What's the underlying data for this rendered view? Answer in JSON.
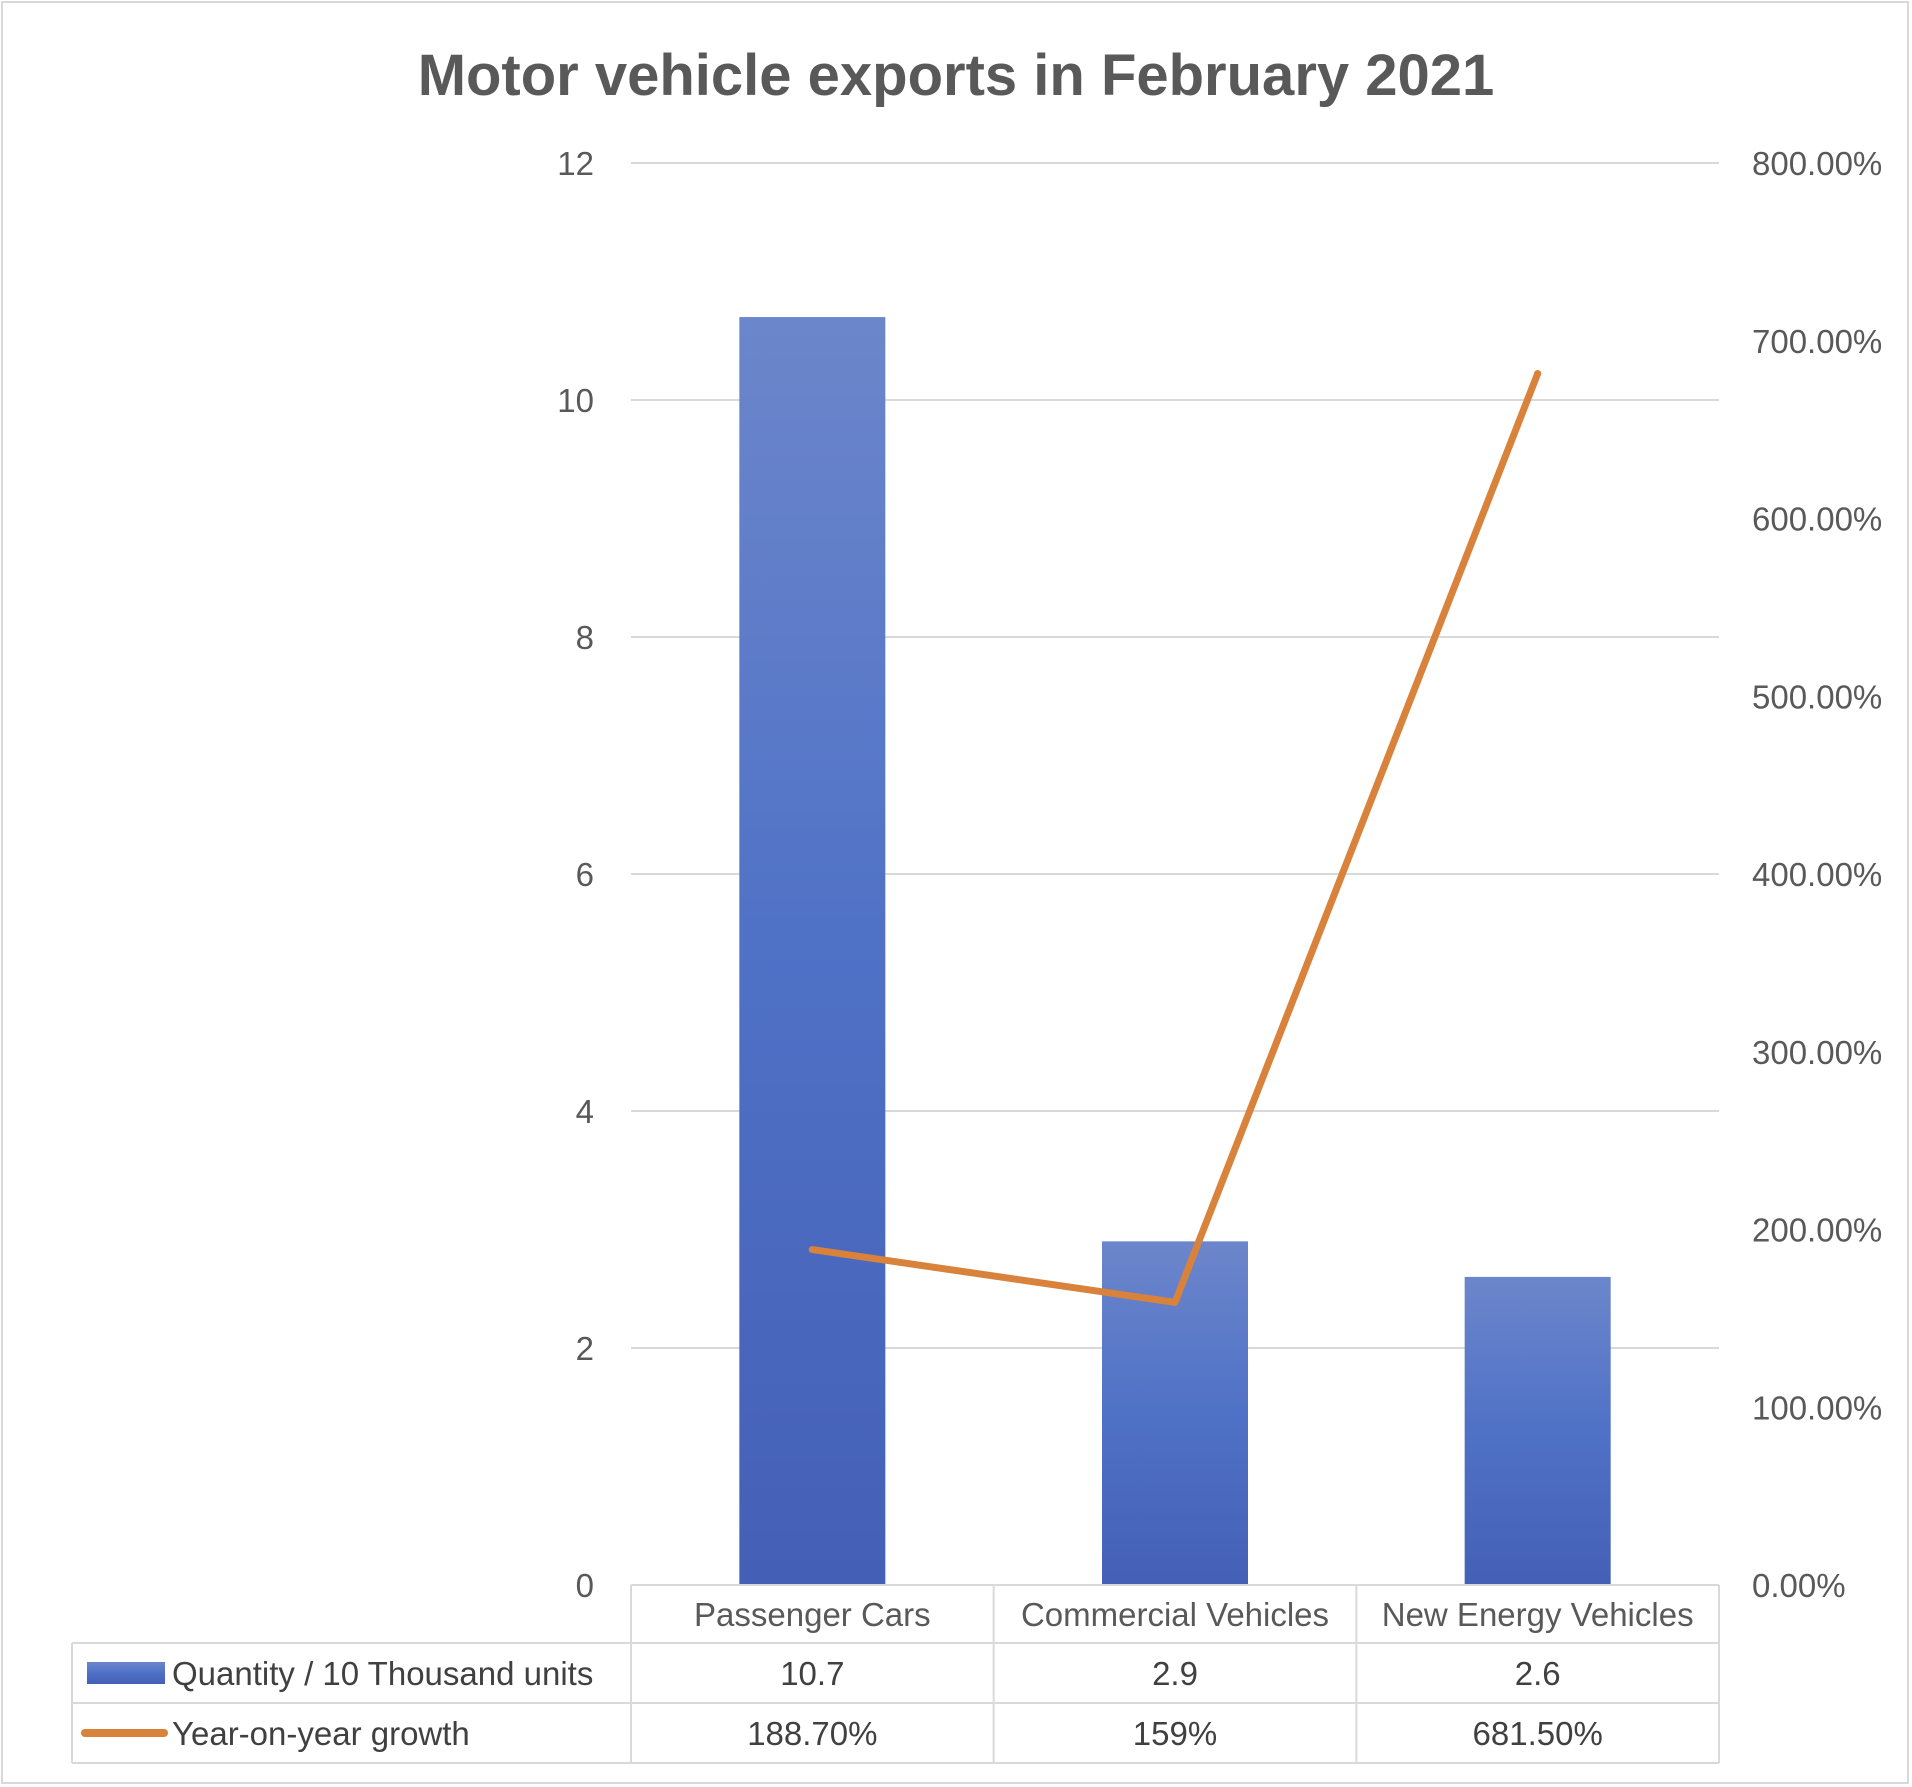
{
  "chart_data": {
    "type": "bar",
    "title": "Motor vehicle exports in February 2021",
    "categories": [
      "Passenger Cars",
      "Commercial Vehicles",
      "New Energy Vehicles"
    ],
    "series": [
      {
        "name": "Quantity / 10 Thousand units",
        "type": "bar",
        "axis": "left",
        "color": "#4a6cc9",
        "values": [
          10.7,
          2.9,
          2.6
        ],
        "labels": [
          "10.7",
          "2.9",
          "2.6"
        ]
      },
      {
        "name": "Year-on-year growth",
        "type": "line",
        "axis": "right",
        "color": "#d9823b",
        "values": [
          188.7,
          159,
          681.5
        ],
        "labels": [
          "188.70%",
          "159%",
          "681.50%"
        ]
      }
    ],
    "y_left": {
      "ylim": [
        0,
        12
      ],
      "ticks": [
        0,
        2,
        4,
        6,
        8,
        10,
        12
      ],
      "tick_labels": [
        "0",
        "2",
        "4",
        "6",
        "8",
        "10",
        "12"
      ]
    },
    "y_right": {
      "ylim": [
        0,
        800
      ],
      "ticks": [
        0,
        100,
        200,
        300,
        400,
        500,
        600,
        700,
        800
      ],
      "tick_labels": [
        "0.00%",
        "100.00%",
        "200.00%",
        "300.00%",
        "400.00%",
        "500.00%",
        "600.00%",
        "700.00%",
        "800.00%"
      ]
    },
    "grid": true,
    "legend": "data-table",
    "data_table": true
  }
}
